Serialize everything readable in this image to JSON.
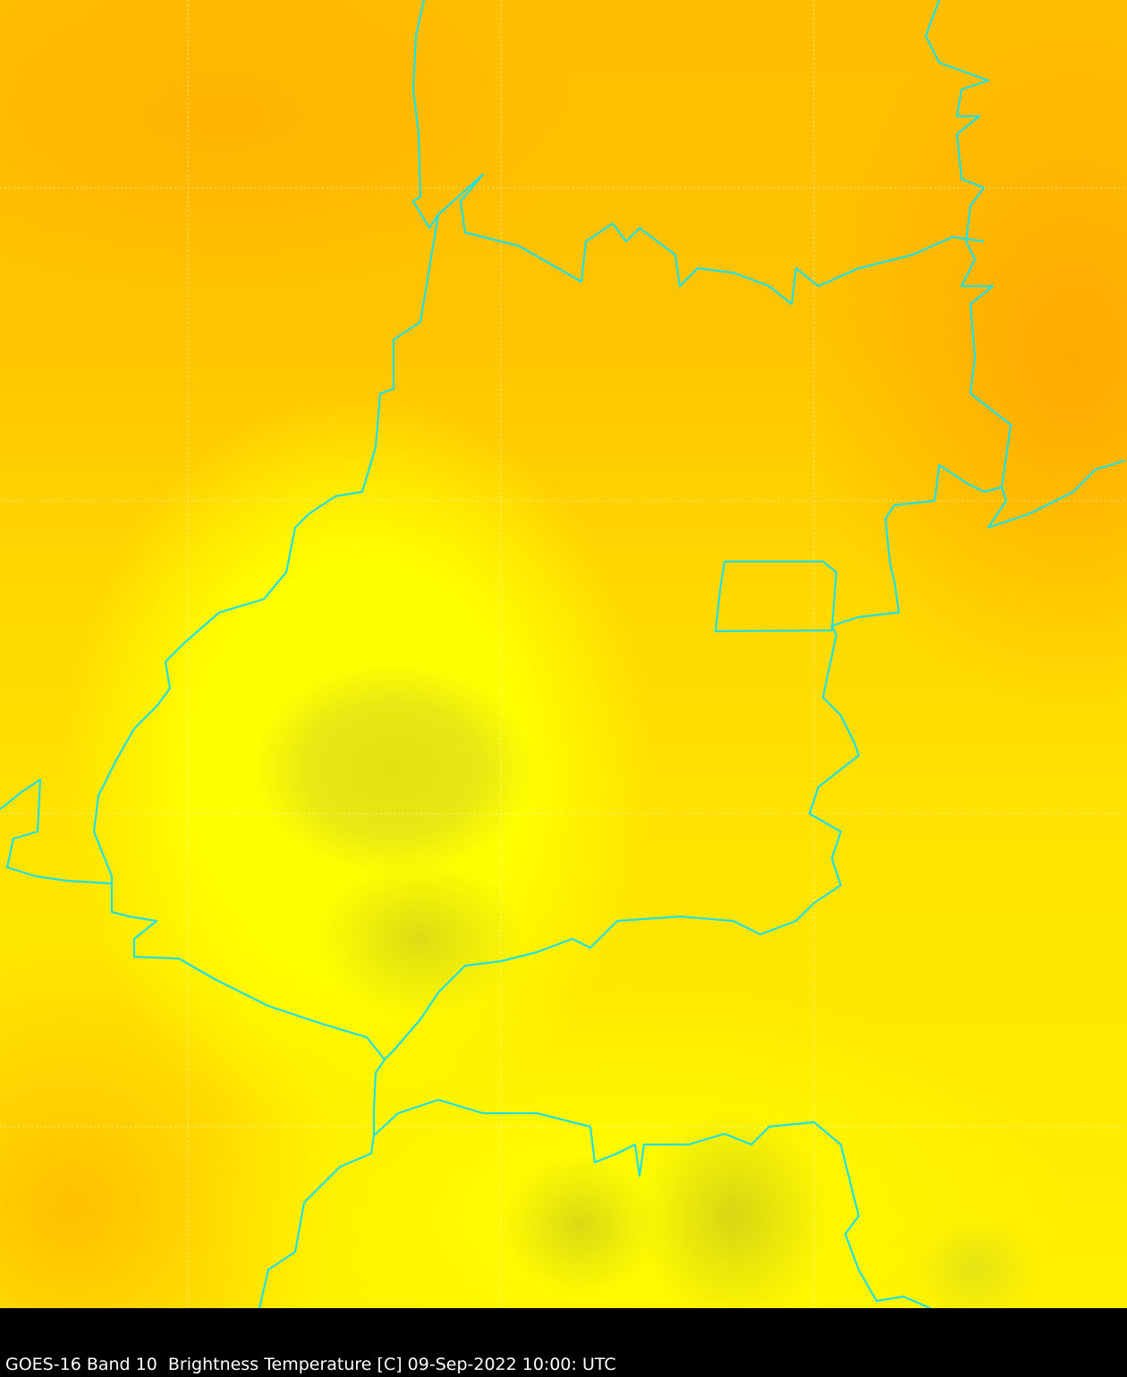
{
  "caption": "GOES-16 Band 10  Brightness Temperature [C] 09-Sep-2022 10:00: UTC",
  "colors": {
    "boundary": "#22e0e0",
    "grid": "#ffffff",
    "warm": "#ffb000",
    "mid": "#ffff00",
    "cloud": "#d8d814",
    "background": "#000000"
  }
}
